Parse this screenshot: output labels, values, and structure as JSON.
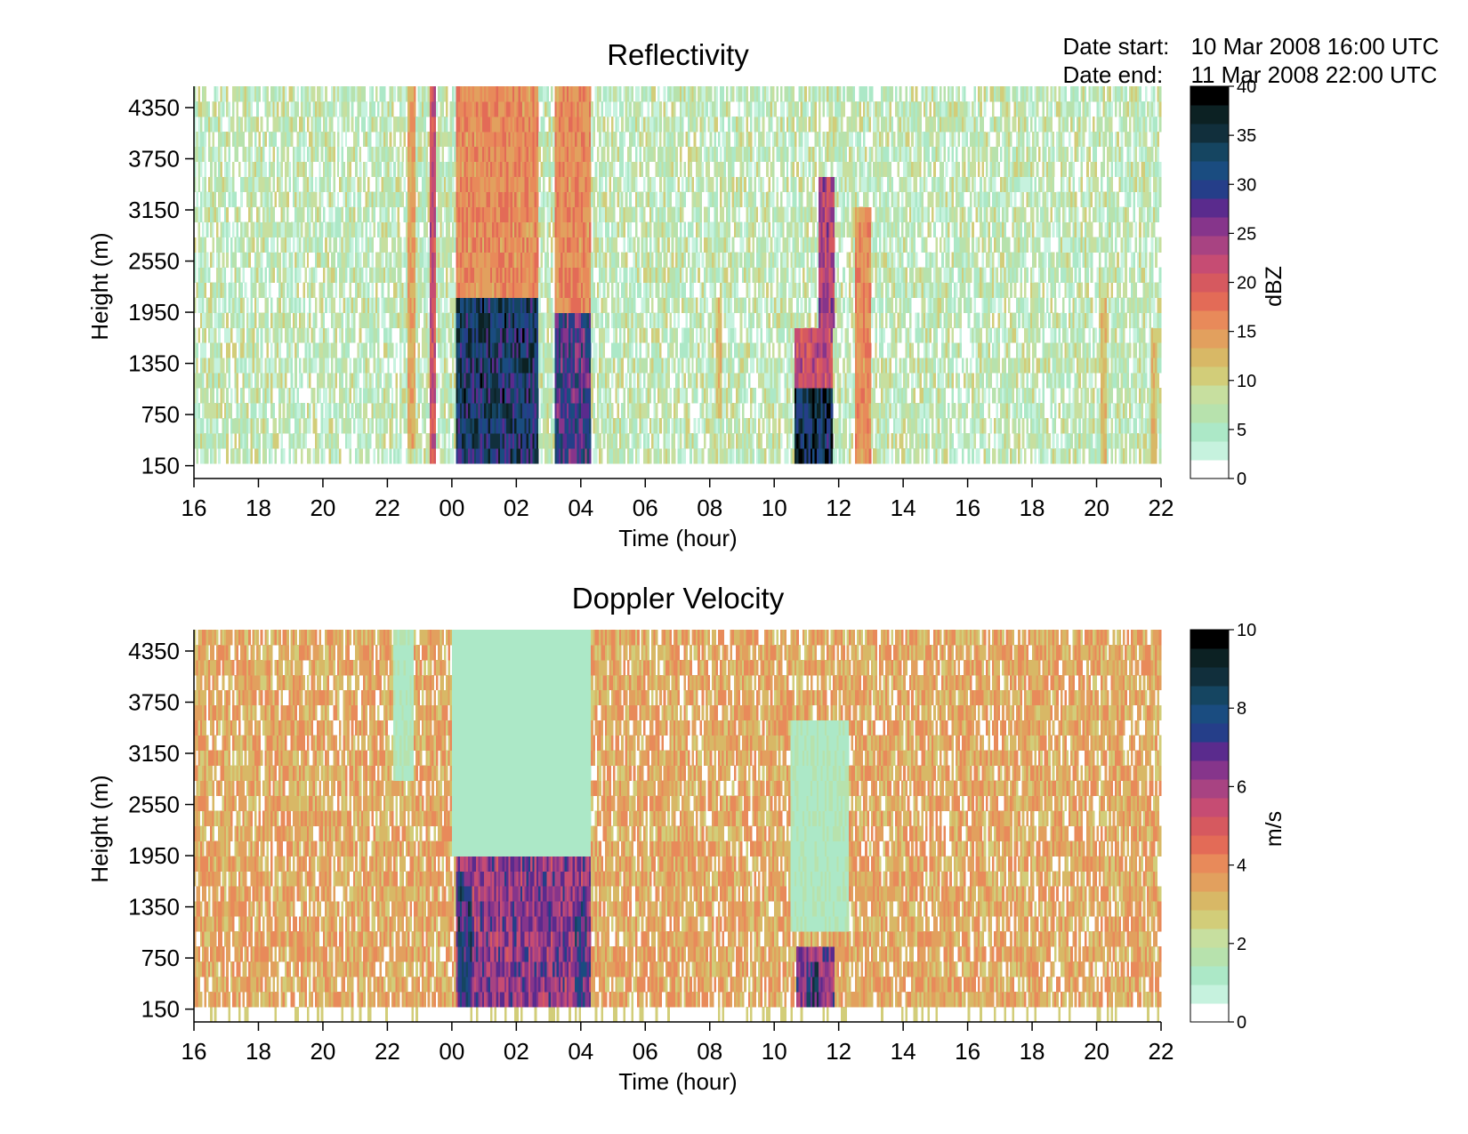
{
  "header": {
    "start_label": "Date start:",
    "start_value": "10 Mar 2008 16:00 UTC",
    "end_label": "Date end:",
    "end_value": "11 Mar 2008 22:00 UTC"
  },
  "chart_data": [
    {
      "type": "heatmap",
      "title": "Reflectivity",
      "xlabel": "Time (hour)",
      "ylabel": "Height (m)",
      "xlim": [
        16,
        46
      ],
      "x_tick_values": [
        16,
        18,
        20,
        22,
        24,
        26,
        28,
        30,
        32,
        34,
        36,
        38,
        40,
        42,
        44,
        46
      ],
      "x_tick_labels": [
        "16",
        "18",
        "20",
        "22",
        "00",
        "02",
        "04",
        "06",
        "08",
        "10",
        "12",
        "14",
        "16",
        "18",
        "20",
        "22"
      ],
      "ylim": [
        0,
        4600
      ],
      "y_ticks": [
        150,
        750,
        1350,
        1950,
        2550,
        3150,
        3750,
        4350
      ],
      "colorbar": {
        "label": "dBZ",
        "ticks": [
          0,
          5,
          10,
          15,
          20,
          25,
          30,
          35,
          40
        ],
        "range": [
          0,
          40
        ],
        "colors": [
          "#ffffff",
          "#c6f2de",
          "#ace8c7",
          "#b7e2ad",
          "#c7df9f",
          "#d2cd79",
          "#d8b866",
          "#e2a05e",
          "#e88a5a",
          "#e36b57",
          "#d6595f",
          "#c64c73",
          "#a84382",
          "#86358b",
          "#5a2b8d",
          "#253e89",
          "#1a4c80",
          "#154561",
          "#112f3c",
          "#0c2123",
          "#000000"
        ]
      },
      "background_range": [
        0,
        10
      ],
      "features": [
        {
          "x_start": 22.6,
          "x_end": 22.9,
          "h_low": 300,
          "h_high": 4600,
          "peak": 14
        },
        {
          "x_start": 23.3,
          "x_end": 23.5,
          "h_low": 150,
          "h_high": 4600,
          "peak": 22
        },
        {
          "x_start": 24.1,
          "x_end": 26.7,
          "h_low": 150,
          "h_high": 2200,
          "peak": 34
        },
        {
          "x_start": 24.1,
          "x_end": 26.7,
          "h_low": 2200,
          "h_high": 4600,
          "peak": 16
        },
        {
          "x_start": 27.2,
          "x_end": 28.3,
          "h_low": 150,
          "h_high": 1950,
          "peak": 30
        },
        {
          "x_start": 27.2,
          "x_end": 28.3,
          "h_low": 1950,
          "h_high": 4600,
          "peak": 16
        },
        {
          "x_start": 32.2,
          "x_end": 32.4,
          "h_low": 700,
          "h_high": 2150,
          "peak": 12
        },
        {
          "x_start": 34.6,
          "x_end": 35.8,
          "h_low": 150,
          "h_high": 1100,
          "peak": 36
        },
        {
          "x_start": 34.6,
          "x_end": 35.8,
          "h_low": 1100,
          "h_high": 1800,
          "peak": 22
        },
        {
          "x_start": 35.4,
          "x_end": 35.9,
          "h_low": 1800,
          "h_high": 3600,
          "peak": 24
        },
        {
          "x_start": 36.5,
          "x_end": 37.0,
          "h_low": 150,
          "h_high": 3200,
          "peak": 16
        },
        {
          "x_start": 44.1,
          "x_end": 44.3,
          "h_low": 150,
          "h_high": 2200,
          "peak": 12
        },
        {
          "x_start": 45.7,
          "x_end": 45.9,
          "h_low": 150,
          "h_high": 1700,
          "peak": 12
        }
      ]
    },
    {
      "type": "heatmap",
      "title": "Doppler Velocity",
      "xlabel": "Time (hour)",
      "ylabel": "Height (m)",
      "xlim": [
        16,
        46
      ],
      "x_tick_values": [
        16,
        18,
        20,
        22,
        24,
        26,
        28,
        30,
        32,
        34,
        36,
        38,
        40,
        42,
        44,
        46
      ],
      "x_tick_labels": [
        "16",
        "18",
        "20",
        "22",
        "00",
        "02",
        "04",
        "06",
        "08",
        "10",
        "12",
        "14",
        "16",
        "18",
        "20",
        "22"
      ],
      "ylim": [
        0,
        4600
      ],
      "y_ticks": [
        150,
        750,
        1350,
        1950,
        2550,
        3150,
        3750,
        4350
      ],
      "colorbar": {
        "label": "m/s",
        "ticks": [
          0,
          2,
          4,
          6,
          8,
          10
        ],
        "range": [
          0,
          10
        ],
        "colors": [
          "#ffffff",
          "#c6f2de",
          "#ace8c7",
          "#b7e2ad",
          "#c7df9f",
          "#d2cd79",
          "#d8b866",
          "#e2a05e",
          "#e88a5a",
          "#e36b57",
          "#d6595f",
          "#c64c73",
          "#a84382",
          "#86358b",
          "#5a2b8d",
          "#253e89",
          "#1a4c80",
          "#154561",
          "#112f3c",
          "#0c2123",
          "#000000"
        ]
      },
      "background_range": [
        2.5,
        4.2
      ],
      "features": [
        {
          "x_start": 22.2,
          "x_end": 22.8,
          "h_low": 2800,
          "h_high": 4600,
          "peak": 1.2
        },
        {
          "x_start": 24.0,
          "x_end": 28.3,
          "h_low": 2000,
          "h_high": 4600,
          "peak": 1.0
        },
        {
          "x_start": 24.1,
          "x_end": 28.3,
          "h_low": 150,
          "h_high": 1900,
          "peak": 6.5
        },
        {
          "x_start": 24.2,
          "x_end": 24.6,
          "h_low": 150,
          "h_high": 1800,
          "peak": 8.0
        },
        {
          "x_start": 27.8,
          "x_end": 28.2,
          "h_low": 150,
          "h_high": 1600,
          "peak": 7.5
        },
        {
          "x_start": 34.5,
          "x_end": 36.3,
          "h_low": 1000,
          "h_high": 3600,
          "peak": 1.2
        },
        {
          "x_start": 34.7,
          "x_end": 35.9,
          "h_low": 150,
          "h_high": 900,
          "peak": 6.5
        },
        {
          "x_start": 35.0,
          "x_end": 35.4,
          "h_low": 150,
          "h_high": 700,
          "peak": 8.0
        }
      ]
    }
  ]
}
